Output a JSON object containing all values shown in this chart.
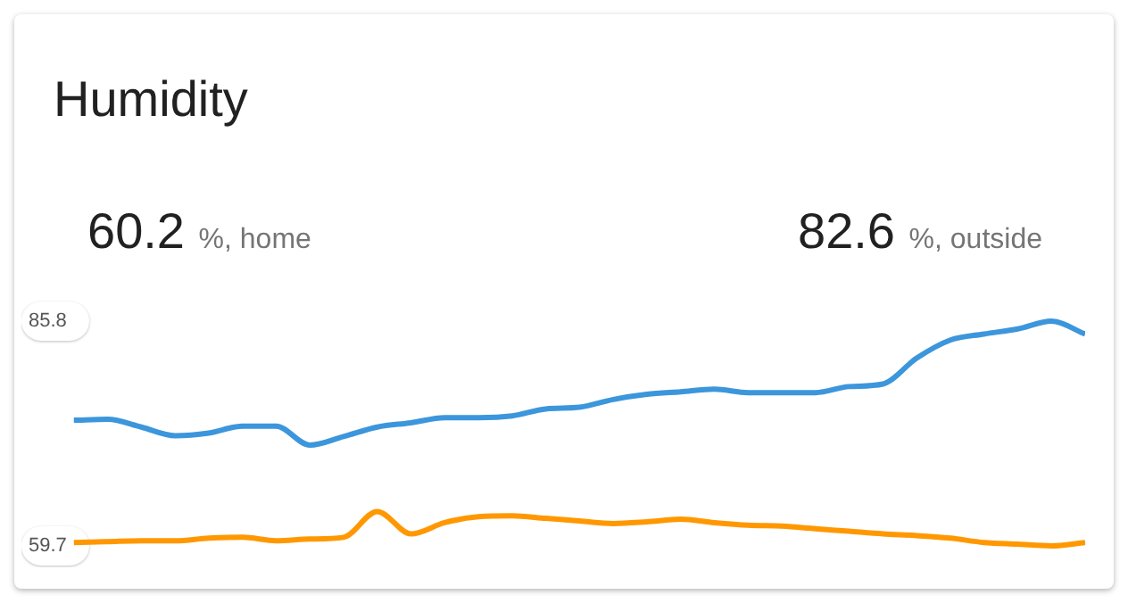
{
  "chart_data": {
    "type": "line",
    "title": "Humidity",
    "annotations": [
      "60.2 %, home",
      "82.6 %, outside"
    ],
    "categories": [
      null,
      null,
      null,
      null,
      null,
      null,
      null,
      null,
      null,
      null,
      null,
      null,
      null,
      null,
      null,
      null,
      null,
      null,
      null,
      null,
      null,
      null,
      null,
      null,
      null,
      null,
      null,
      null,
      null,
      null,
      null
    ],
    "series": [
      {
        "color": "#3c96dc",
        "values": [
          74.3,
          74.4,
          73.5,
          72.5,
          72.8,
          73.6,
          73.6,
          71.4,
          72.4,
          73.5,
          74.0,
          74.6,
          74.6,
          74.8,
          75.6,
          75.8,
          76.7,
          77.3,
          77.6,
          77.9,
          77.5,
          77.5,
          77.5,
          78.2,
          78.5,
          81.5,
          83.6,
          84.3,
          84.9,
          85.8,
          84.3
        ]
      },
      {
        "color": "#ff9800",
        "values": [
          60.1,
          60.2,
          60.3,
          60.3,
          60.6,
          60.7,
          60.3,
          60.5,
          60.7,
          63.7,
          61.1,
          62.4,
          63.1,
          63.2,
          62.9,
          62.6,
          62.3,
          62.5,
          62.8,
          62.4,
          62.1,
          62.0,
          61.7,
          61.4,
          61.1,
          60.9,
          60.6,
          60.1,
          59.9,
          59.7,
          60.1
        ]
      }
    ],
    "ylim": [
      59.7,
      85.8
    ],
    "yticks": [
      85.8,
      59.7
    ],
    "grid": false,
    "legend": false,
    "marker": "none",
    "line_style": "solid",
    "tick_labels": "y"
  }
}
